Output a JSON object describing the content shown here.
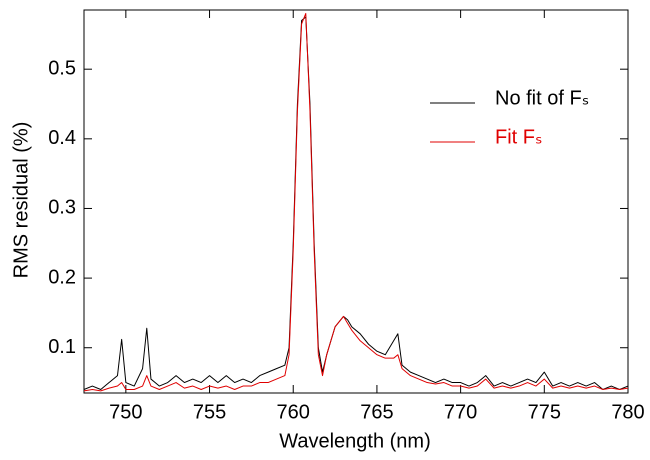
{
  "chart_data": {
    "type": "line",
    "x_label": "Wavelength (nm)",
    "y_label": "RMS residual (%)",
    "x": [
      747.5,
      748,
      748.5,
      749,
      749.5,
      749.75,
      750,
      750.5,
      751,
      751.25,
      751.5,
      752,
      752.5,
      753,
      753.5,
      754,
      754.5,
      755,
      755.5,
      756,
      756.5,
      757,
      757.5,
      758,
      758.5,
      759,
      759.5,
      759.75,
      760,
      760.25,
      760.5,
      760.75,
      761,
      761.25,
      761.5,
      761.75,
      762,
      762.25,
      762.5,
      763,
      763.25,
      763.5,
      764,
      764.5,
      765,
      765.5,
      766,
      766.25,
      766.5,
      767,
      767.5,
      768,
      768.5,
      769,
      769.5,
      770,
      770.5,
      771,
      771.5,
      772,
      772.5,
      773,
      773.5,
      774,
      774.5,
      775,
      775.5,
      776,
      776.5,
      777,
      777.5,
      778,
      778.5,
      779,
      779.5,
      780
    ],
    "series": [
      {
        "name": "No fit of Fₛ",
        "color": "#000000",
        "values": [
          0.04,
          0.045,
          0.04,
          0.05,
          0.06,
          0.112,
          0.05,
          0.045,
          0.07,
          0.128,
          0.055,
          0.045,
          0.05,
          0.06,
          0.05,
          0.055,
          0.05,
          0.06,
          0.05,
          0.06,
          0.05,
          0.055,
          0.05,
          0.06,
          0.065,
          0.07,
          0.075,
          0.1,
          0.25,
          0.45,
          0.57,
          0.575,
          0.45,
          0.25,
          0.1,
          0.065,
          0.09,
          0.11,
          0.13,
          0.145,
          0.14,
          0.13,
          0.12,
          0.105,
          0.095,
          0.09,
          0.11,
          0.12,
          0.075,
          0.065,
          0.06,
          0.055,
          0.05,
          0.055,
          0.05,
          0.05,
          0.045,
          0.05,
          0.06,
          0.045,
          0.05,
          0.045,
          0.05,
          0.055,
          0.05,
          0.065,
          0.045,
          0.05,
          0.045,
          0.05,
          0.045,
          0.05,
          0.04,
          0.045,
          0.04,
          0.045
        ]
      },
      {
        "name": "Fit Fₛ",
        "color": "#e00000",
        "values": [
          0.038,
          0.04,
          0.038,
          0.042,
          0.045,
          0.05,
          0.04,
          0.04,
          0.045,
          0.06,
          0.045,
          0.04,
          0.045,
          0.05,
          0.042,
          0.045,
          0.04,
          0.045,
          0.042,
          0.045,
          0.04,
          0.045,
          0.045,
          0.05,
          0.05,
          0.055,
          0.06,
          0.09,
          0.24,
          0.44,
          0.565,
          0.58,
          0.44,
          0.24,
          0.09,
          0.06,
          0.09,
          0.11,
          0.13,
          0.145,
          0.135,
          0.125,
          0.11,
          0.1,
          0.09,
          0.085,
          0.085,
          0.09,
          0.07,
          0.06,
          0.055,
          0.05,
          0.048,
          0.05,
          0.045,
          0.045,
          0.042,
          0.045,
          0.055,
          0.042,
          0.045,
          0.042,
          0.045,
          0.05,
          0.045,
          0.055,
          0.042,
          0.045,
          0.042,
          0.045,
          0.042,
          0.045,
          0.04,
          0.042,
          0.04,
          0.042
        ]
      }
    ],
    "xlim": [
      747.5,
      780
    ],
    "ylim": [
      0.035,
      0.585
    ],
    "xticks": [
      750,
      755,
      760,
      765,
      770,
      775,
      780
    ],
    "yticks": [
      0.1,
      0.2,
      0.3,
      0.4,
      0.5
    ],
    "grid": false,
    "legend": "upper right"
  }
}
